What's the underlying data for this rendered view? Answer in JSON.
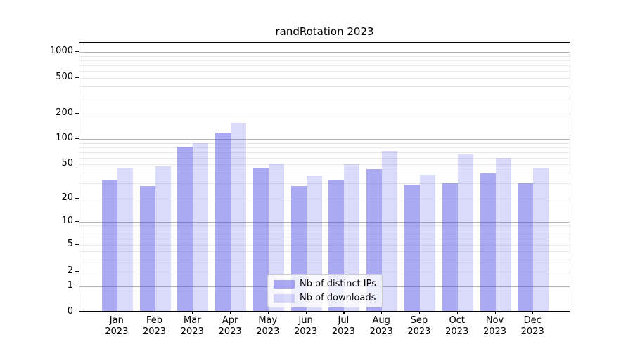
{
  "title": "randRotation 2023",
  "colors": {
    "ips_bar": "rgba(85,85,230,0.50)",
    "downloads_bar": "rgba(85,85,230,0.22)",
    "major_gridline": "#b3b3b3",
    "minor_gridline": "#e8e8e8",
    "axis": "#000000"
  },
  "legend": {
    "items": [
      {
        "label": "Nb of distinct IPs",
        "series": "ips"
      },
      {
        "label": "Nb of downloads",
        "series": "downloads"
      }
    ]
  },
  "chart_data": {
    "type": "bar",
    "title": "randRotation 2023",
    "categories": [
      "Jan 2023",
      "Feb 2023",
      "Mar 2023",
      "Apr 2023",
      "May 2023",
      "Jun 2023",
      "Jul 2023",
      "Aug 2023",
      "Sep 2023",
      "Oct 2023",
      "Nov 2023",
      "Dec 2023"
    ],
    "series": [
      {
        "name": "Nb of distinct IPs",
        "key": "ips",
        "values": [
          33,
          28,
          81,
          120,
          45,
          28,
          33,
          44,
          29,
          30,
          39,
          30
        ]
      },
      {
        "name": "Nb of downloads",
        "key": "downloads",
        "values": [
          45,
          47,
          91,
          155,
          51,
          37,
          50,
          72,
          38,
          65,
          59,
          45
        ]
      }
    ],
    "xlabel": "",
    "ylabel": "",
    "yscale": "symlog",
    "yticks": [
      0,
      1,
      2,
      5,
      10,
      20,
      50,
      100,
      200,
      500,
      1000
    ],
    "minor_grid_values": [
      3,
      4,
      6,
      7,
      8,
      9,
      30,
      40,
      60,
      70,
      80,
      90,
      300,
      400,
      600,
      700,
      800,
      900
    ],
    "ylim": [
      0,
      1250
    ],
    "grid": true,
    "legend_position": "lower center"
  }
}
